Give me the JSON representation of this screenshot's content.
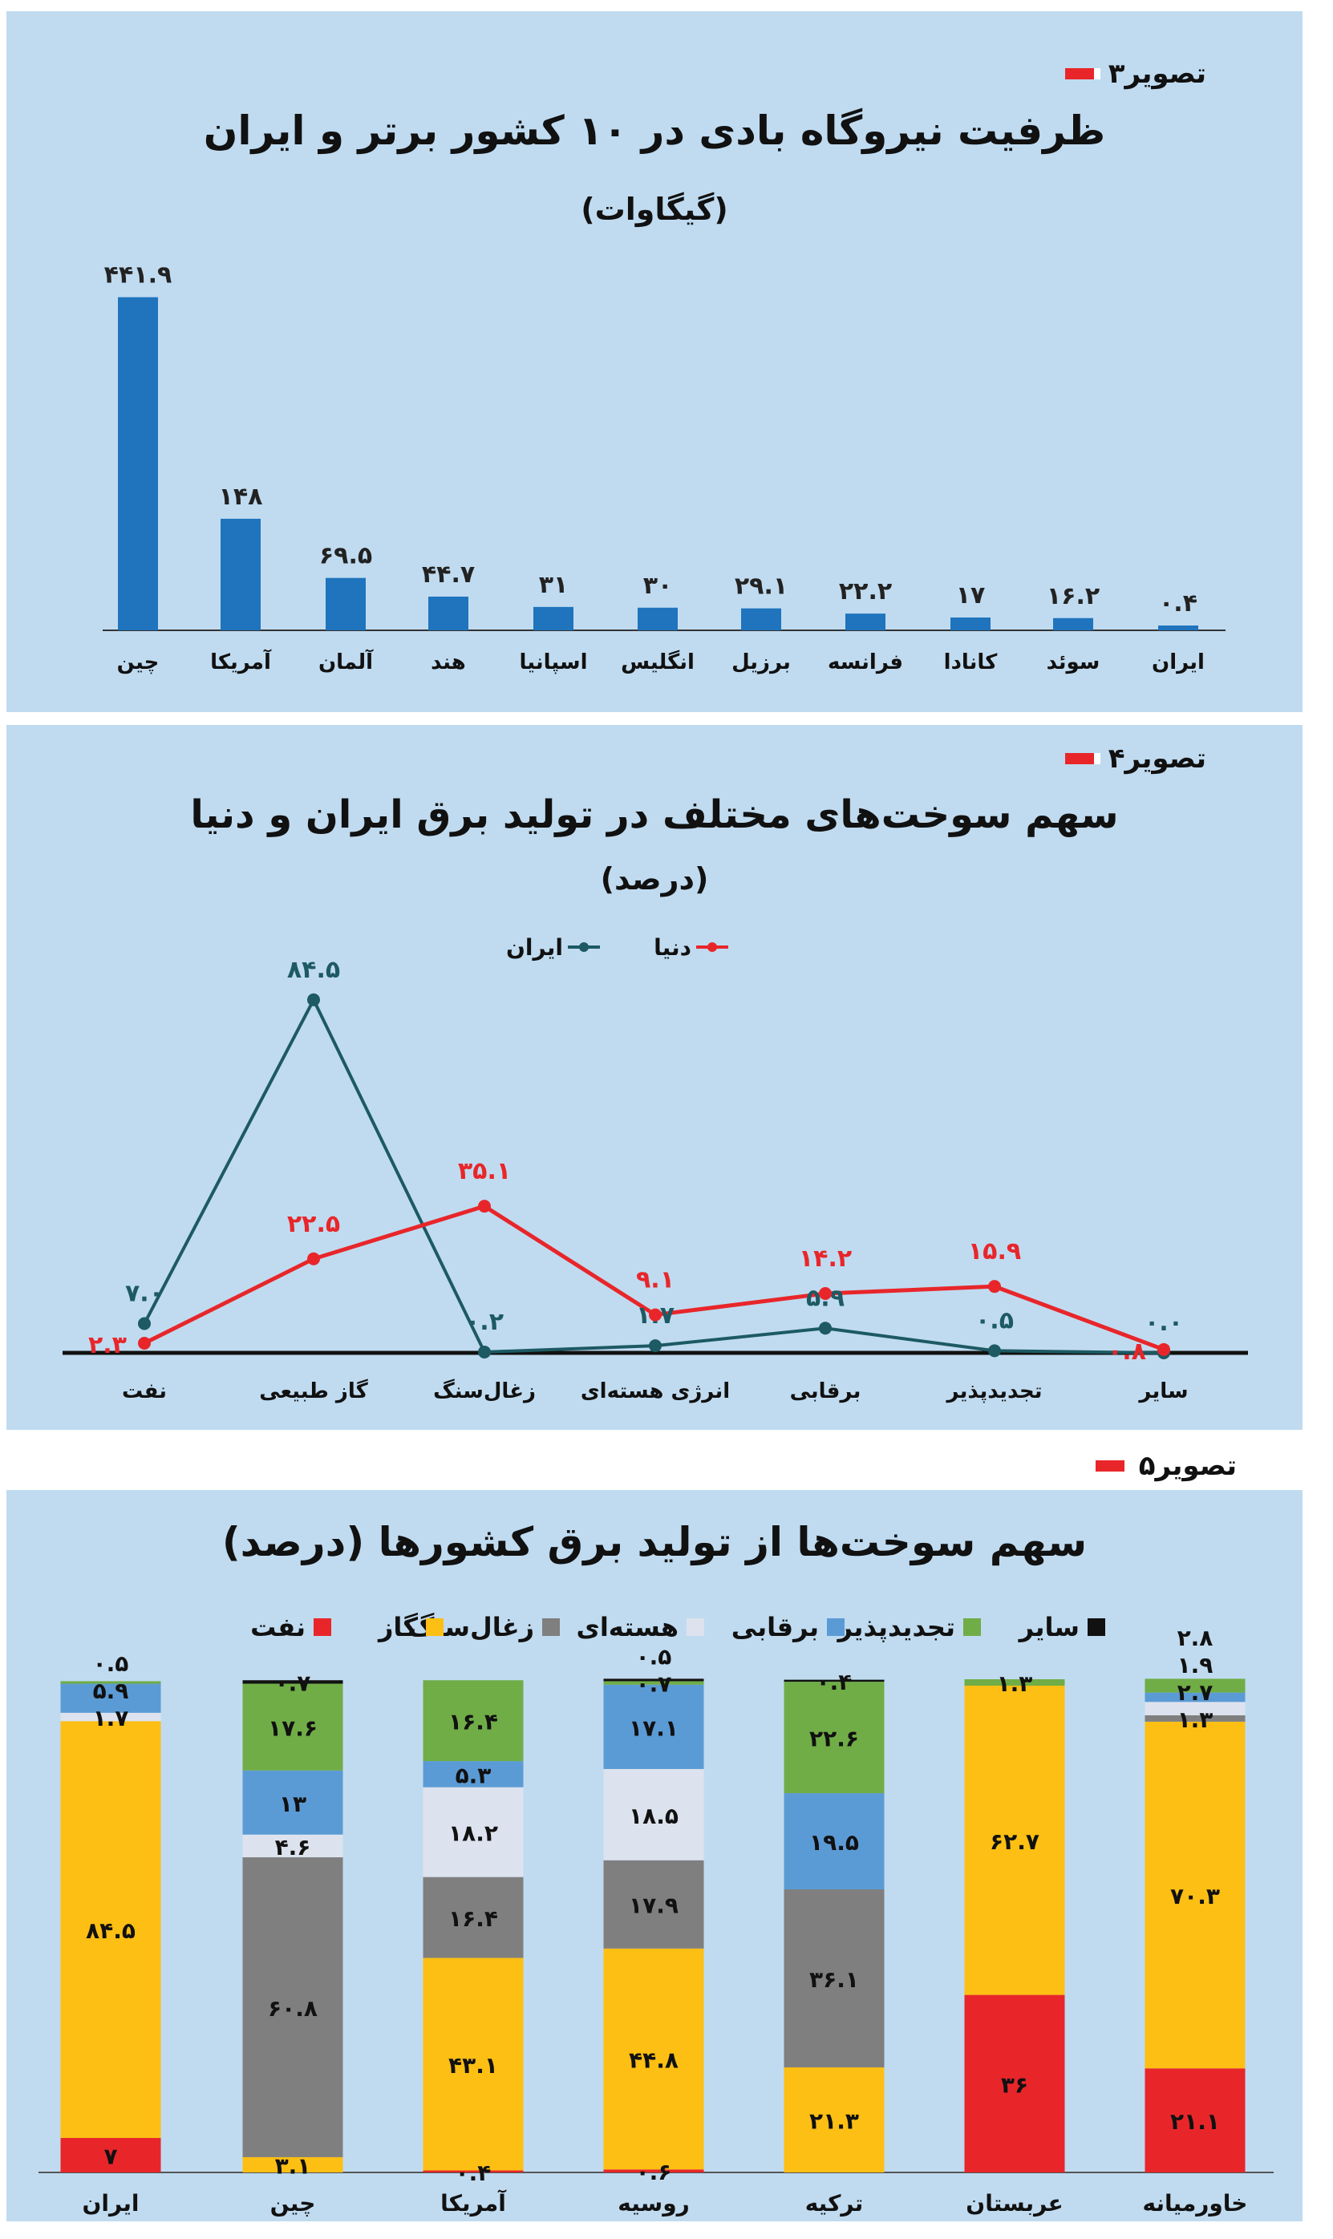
{
  "chart_data": [
    {
      "type": "bar",
      "tag": "تصویر۳",
      "title": "ظرفیت نیروگاه بادی در ۱۰ کشور برتر و ایران",
      "subtitle": "(گیگاوات)",
      "categories": [
        "چین",
        "آمریکا",
        "آلمان",
        "هند",
        "اسپانیا",
        "انگلیس",
        "برزیل",
        "فرانسه",
        "کانادا",
        "سوئد",
        "ایران"
      ],
      "values": [
        441.9,
        148,
        69.5,
        44.7,
        31,
        30,
        29.1,
        22.2,
        17,
        16.2,
        0.4
      ],
      "value_labels": [
        "۴۴۱.۹",
        "۱۴۸",
        "۶۹.۵",
        "۴۴.۷",
        "۳۱",
        "۳۰",
        "۲۹.۱",
        "۲۲.۲",
        "۱۷",
        "۱۶.۲",
        "۰.۴"
      ],
      "color": "#1f74bd"
    },
    {
      "type": "line",
      "tag": "تصویر۴",
      "title": "سهم سوخت‌های مختلف در تولید برق ایران و دنیا",
      "subtitle": "(درصد)",
      "categories": [
        "نفت",
        "گاز طبیعی",
        "زغال‌سنگ",
        "انرژی هسته‌ای",
        "برقابی",
        "تجدیدپذیر",
        "سایر"
      ],
      "series": [
        {
          "name": "ایران",
          "color": "#1d5a63",
          "values": [
            7.0,
            84.5,
            0.2,
            1.7,
            5.9,
            0.5,
            0.0
          ],
          "labels": [
            "۷.۰",
            "۸۴.۵",
            "۰.۲",
            "۱.۷",
            "۵.۹",
            "۰.۵",
            "۰.۰"
          ]
        },
        {
          "name": "دنیا",
          "color": "#e8262a",
          "values": [
            2.3,
            22.5,
            35.1,
            9.1,
            14.2,
            15.9,
            0.8
          ],
          "labels": [
            "۲.۳",
            "۲۲.۵",
            "۳۵.۱",
            "۹.۱",
            "۱۴.۲",
            "۱۵.۹",
            "۰.۸"
          ]
        }
      ]
    },
    {
      "type": "bar",
      "stacked": true,
      "tag": "تصویر۵",
      "title": "سهم سوخت‌ها از تولید برق کشورها (درصد)",
      "categories": [
        "ایران",
        "چین",
        "آمریکا",
        "روسیه",
        "ترکیه",
        "عربستان",
        "خاورمیانه"
      ],
      "series": [
        {
          "name": "نفت",
          "color": "#e8262a",
          "values": [
            7,
            0,
            0.4,
            0.6,
            0,
            36,
            21.1
          ],
          "labels": [
            "۷",
            "",
            "۰.۴",
            "۰.۶",
            "",
            "۳۶",
            "۲۱.۱"
          ]
        },
        {
          "name": "گاز",
          "color": "#fdbf13",
          "values": [
            84.5,
            3.1,
            43.1,
            44.8,
            21.3,
            62.7,
            70.3
          ],
          "labels": [
            "۸۴.۵",
            "۳.۱",
            "۴۳.۱",
            "۴۴.۸",
            "۲۱.۳",
            "۶۲.۷",
            "۷۰.۳"
          ]
        },
        {
          "name": "زغال‌سنگ",
          "color": "#7f7f7f",
          "values": [
            0,
            60.8,
            16.4,
            17.9,
            36.1,
            0,
            1.3
          ],
          "labels": [
            "",
            "۶۰.۸",
            "۱۶.۴",
            "۱۷.۹",
            "۳۶.۱",
            "",
            "۱.۳"
          ]
        },
        {
          "name": "هسته‌ای",
          "color": "#dde3ee",
          "values": [
            1.7,
            4.6,
            18.2,
            18.5,
            0,
            0,
            2.7
          ],
          "labels": [
            "۱.۷",
            "۴.۶",
            "۱۸.۲",
            "۱۸.۵",
            "",
            "",
            "۲.۷"
          ]
        },
        {
          "name": "برقابی",
          "color": "#5b9bd5",
          "values": [
            5.9,
            13,
            5.3,
            17.1,
            19.5,
            0,
            1.9
          ],
          "labels": [
            "۵.۹",
            "۱۳",
            "۵.۳",
            "۱۷.۱",
            "۱۹.۵",
            "",
            "۱.۹"
          ]
        },
        {
          "name": "تجدیدپذیر",
          "color": "#70ad47",
          "values": [
            0.5,
            17.6,
            16.4,
            0.7,
            22.6,
            1.3,
            2.8
          ],
          "labels": [
            "۰.۵",
            "۱۷.۶",
            "۱۶.۴",
            "۰.۷",
            "۲۲.۶",
            "۱.۳",
            "۲.۸"
          ]
        },
        {
          "name": "سایر",
          "color": "#111111",
          "values": [
            0,
            0.7,
            0,
            0.5,
            0.4,
            0,
            0
          ],
          "labels": [
            "",
            "۰.۷",
            "",
            "۰.۵",
            "۰.۴",
            "",
            ""
          ]
        }
      ]
    }
  ]
}
